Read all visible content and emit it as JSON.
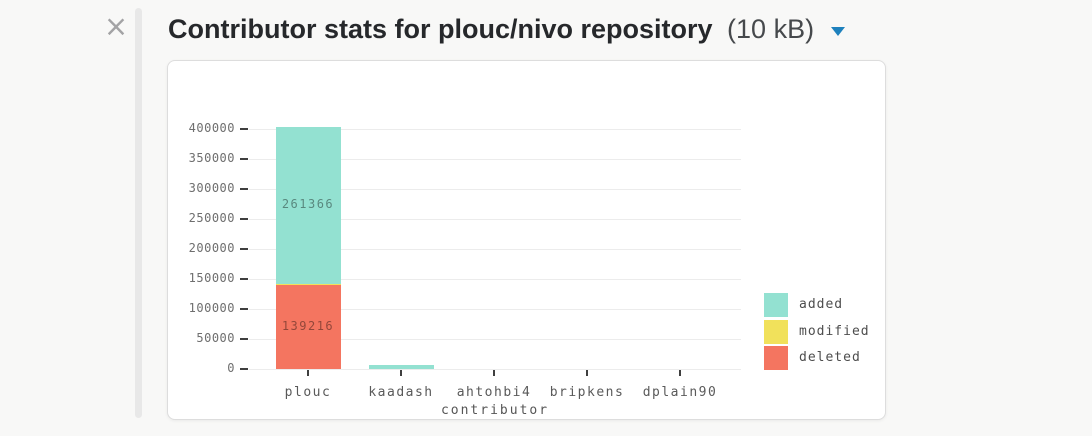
{
  "header": {
    "close_icon": "×",
    "title": "Contributor stats for plouc/nivo repository",
    "size": "(10 kB)",
    "caret_icon": "caret-down",
    "caret_color": "#1e81bd"
  },
  "colors": {
    "page_bg": "#f8f8f7",
    "card_bg": "#ffffff",
    "card_border": "#dddddd",
    "grid": "#ececec",
    "axis_text": "#6e6e6e",
    "tick_mark": "#3f3f3f",
    "bar_label_text": "rgba(0,0,0,0.40)",
    "legend_text": "#4d4d4d"
  },
  "chart_data": {
    "type": "bar",
    "stacked": true,
    "categories": [
      "plouc",
      "kaadash",
      "ahtohbi4",
      "bripkens",
      "dplain90"
    ],
    "series": [
      {
        "name": "added",
        "color": "#93e1d1",
        "values": [
          261366,
          6000,
          0,
          0,
          0
        ]
      },
      {
        "name": "modified",
        "color": "#f1e15b",
        "values": [
          3000,
          0,
          0,
          0,
          0
        ]
      },
      {
        "name": "deleted",
        "color": "#f47560",
        "values": [
          139216,
          0,
          0,
          0,
          0
        ]
      }
    ],
    "stack_order_bottom_up": [
      "deleted",
      "modified",
      "added"
    ],
    "visible_bar_labels": [
      {
        "category": "plouc",
        "series": "added",
        "label": "261366"
      },
      {
        "category": "plouc",
        "series": "deleted",
        "label": "139216"
      }
    ],
    "xlabel": "contributor",
    "ylabel": "",
    "y_ticks": [
      0,
      50000,
      100000,
      150000,
      200000,
      250000,
      300000,
      350000,
      400000
    ],
    "ylim": [
      0,
      400000
    ],
    "grid": "horizontal",
    "legend": {
      "position": "right",
      "entries": [
        "added",
        "modified",
        "deleted"
      ]
    }
  }
}
